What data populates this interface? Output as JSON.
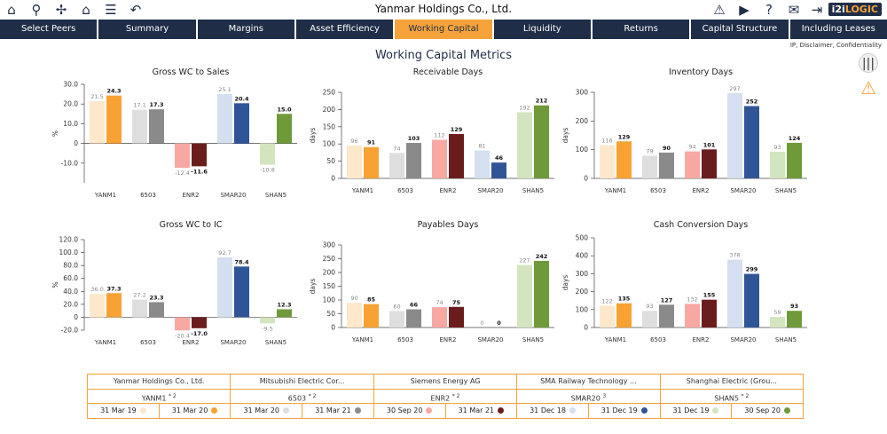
{
  "app": {
    "title": "Yanmar Holdings Co., Ltd.",
    "logo": "i2iLOGIC",
    "disclaimer": "IP, Disclaimer, Confidentiality",
    "page_title": "Working Capital Metrics",
    "toolbar_icons": [
      "home-icon",
      "search-icon",
      "windmill-icon",
      "peers-icon",
      "stack-icon",
      "undo-icon"
    ],
    "right_icons": [
      "alert-icon",
      "video-icon",
      "help-icon",
      "chat-icon",
      "exit-icon"
    ]
  },
  "nav": {
    "tabs": [
      "Select Peers",
      "Summary",
      "Margins",
      "Asset Efficiency",
      "Working Capital",
      "Liquidity",
      "Returns",
      "Capital Structure",
      "Including Leases"
    ],
    "active_index": 4
  },
  "colors": {
    "navy": "#1f2d47",
    "accent": "#f5a33a",
    "pairs": [
      [
        "#fde8cc",
        "#f7a233"
      ],
      [
        "#dedede",
        "#8a8a8a"
      ],
      [
        "#f7a8a2",
        "#6b1d1d"
      ],
      [
        "#d4e0ef",
        "#2f5597"
      ],
      [
        "#d3e5bf",
        "#6f9a3a"
      ]
    ]
  },
  "chart_data": [
    {
      "type": "bar",
      "title": "Gross WC to Sales",
      "ylabel": "%",
      "ylim": [
        -20,
        30
      ],
      "yticks": [
        "-10.0",
        "0",
        "10.0",
        "20.0",
        "30.0"
      ],
      "ytick_values": [
        -10,
        0,
        10,
        20,
        30
      ],
      "categories": [
        "YANM1",
        "6503",
        "ENR2",
        "SMAR20",
        "SHAN5"
      ],
      "series": [
        {
          "values": [
            21.5,
            17.1,
            -12.4,
            25.1,
            -10.8
          ],
          "labels": [
            "21.5",
            "17.1",
            "-12.4",
            "25.1",
            "-10.8"
          ]
        },
        {
          "values": [
            24.3,
            17.3,
            -11.6,
            20.4,
            15.0
          ],
          "labels": [
            "24.3",
            "17.3",
            "-11.6",
            "20.4",
            "15.0"
          ]
        }
      ]
    },
    {
      "type": "bar",
      "title": "Receivable Days",
      "ylabel": "days",
      "ylim": [
        0,
        250
      ],
      "yticks": [
        "0",
        "50",
        "100",
        "150",
        "200",
        "250"
      ],
      "ytick_values": [
        0,
        50,
        100,
        150,
        200,
        250
      ],
      "categories": [
        "YANM1",
        "6503",
        "ENR2",
        "SMAR20",
        "SHAN5"
      ],
      "series": [
        {
          "values": [
            96,
            74,
            112,
            81,
            192
          ],
          "labels": [
            "96",
            "74",
            "112",
            "81",
            "192"
          ]
        },
        {
          "values": [
            91,
            103,
            129,
            46,
            212
          ],
          "labels": [
            "91",
            "103",
            "129",
            "46",
            "212"
          ]
        }
      ]
    },
    {
      "type": "bar",
      "title": "Inventory Days",
      "ylabel": "days",
      "ylim": [
        0,
        300
      ],
      "yticks": [
        "0",
        "100",
        "200",
        "300"
      ],
      "ytick_values": [
        0,
        100,
        200,
        300
      ],
      "categories": [
        "YANM1",
        "6503",
        "ENR2",
        "SMAR20",
        "SHAN5"
      ],
      "series": [
        {
          "values": [
            116,
            79,
            94,
            297,
            93
          ],
          "labels": [
            "116",
            "79",
            "94",
            "297",
            "93"
          ]
        },
        {
          "values": [
            129,
            90,
            101,
            252,
            124
          ],
          "labels": [
            "129",
            "90",
            "101",
            "252",
            "124"
          ]
        }
      ]
    },
    {
      "type": "bar",
      "title": "Gross WC to IC",
      "ylabel": "%",
      "ylim": [
        -20,
        120
      ],
      "yticks": [
        "-20.0",
        "0",
        "20.0",
        "40.0",
        "60.0",
        "80.0",
        "100.0",
        "120.0"
      ],
      "ytick_values": [
        -20,
        0,
        20,
        40,
        60,
        80,
        100,
        120
      ],
      "categories": [
        "YANM1",
        "6503",
        "ENR2",
        "SMAR20",
        "SHAN5"
      ],
      "series": [
        {
          "values": [
            36.0,
            27.2,
            -20.4,
            92.7,
            -9.5
          ],
          "labels": [
            "36.0",
            "27.2",
            "-20.4",
            "92.7",
            "-9.5"
          ]
        },
        {
          "values": [
            37.3,
            23.3,
            -17.0,
            78.4,
            12.3
          ],
          "labels": [
            "37.3",
            "23.3",
            "-17.0",
            "78.4",
            "12.3"
          ]
        }
      ]
    },
    {
      "type": "bar",
      "title": "Payables Days",
      "ylabel": "days",
      "ylim": [
        0,
        300
      ],
      "yticks": [
        "0",
        "50",
        "100",
        "150",
        "200",
        "250",
        "300"
      ],
      "ytick_values": [
        0,
        50,
        100,
        150,
        200,
        250,
        300
      ],
      "categories": [
        "YANM1",
        "6503",
        "ENR2",
        "SMAR20",
        "SHAN5"
      ],
      "series": [
        {
          "values": [
            90,
            60,
            74,
            0,
            227
          ],
          "labels": [
            "90",
            "60",
            "74",
            "0",
            "227"
          ]
        },
        {
          "values": [
            85,
            66,
            75,
            0,
            242
          ],
          "labels": [
            "85",
            "66",
            "75",
            "0",
            "242"
          ]
        }
      ]
    },
    {
      "type": "bar",
      "title": "Cash Conversion Days",
      "ylabel": "days",
      "ylim": [
        0,
        500
      ],
      "yticks": [
        "0",
        "100",
        "200",
        "300",
        "400",
        "500"
      ],
      "ytick_values": [
        0,
        100,
        200,
        300,
        400,
        500
      ],
      "categories": [
        "YANM1",
        "6503",
        "ENR2",
        "SMAR20",
        "SHAN5"
      ],
      "series": [
        {
          "values": [
            122,
            93,
            132,
            378,
            59
          ],
          "labels": [
            "122",
            "93",
            "132",
            "378",
            "59"
          ]
        },
        {
          "values": [
            135,
            127,
            155,
            299,
            93
          ],
          "labels": [
            "135",
            "127",
            "155",
            "299",
            "93"
          ]
        }
      ]
    }
  ],
  "legend": [
    {
      "company": "Yanmar Holdings Co., Ltd.",
      "ticker": "YANM1",
      "note": "* 2",
      "dates": [
        "31 Mar 19",
        "31 Mar 20"
      ]
    },
    {
      "company": "Mitsubishi Electric Cor...",
      "ticker": "6503",
      "note": "* 2",
      "dates": [
        "31 Mar 20",
        "31 Mar 21"
      ]
    },
    {
      "company": "Siemens Energy AG",
      "ticker": "ENR2",
      "note": "* 2",
      "dates": [
        "30 Sep 20",
        "31 Mar 21"
      ]
    },
    {
      "company": "SMA Railway Technology ...",
      "ticker": "SMAR20",
      "note": "3",
      "dates": [
        "31 Dec 18",
        "31 Dec 19"
      ]
    },
    {
      "company": "Shanghai Electric (Grou...",
      "ticker": "SHAN5",
      "note": "* 2",
      "dates": [
        "31 Dec 19",
        "30 Sep 20"
      ]
    }
  ]
}
